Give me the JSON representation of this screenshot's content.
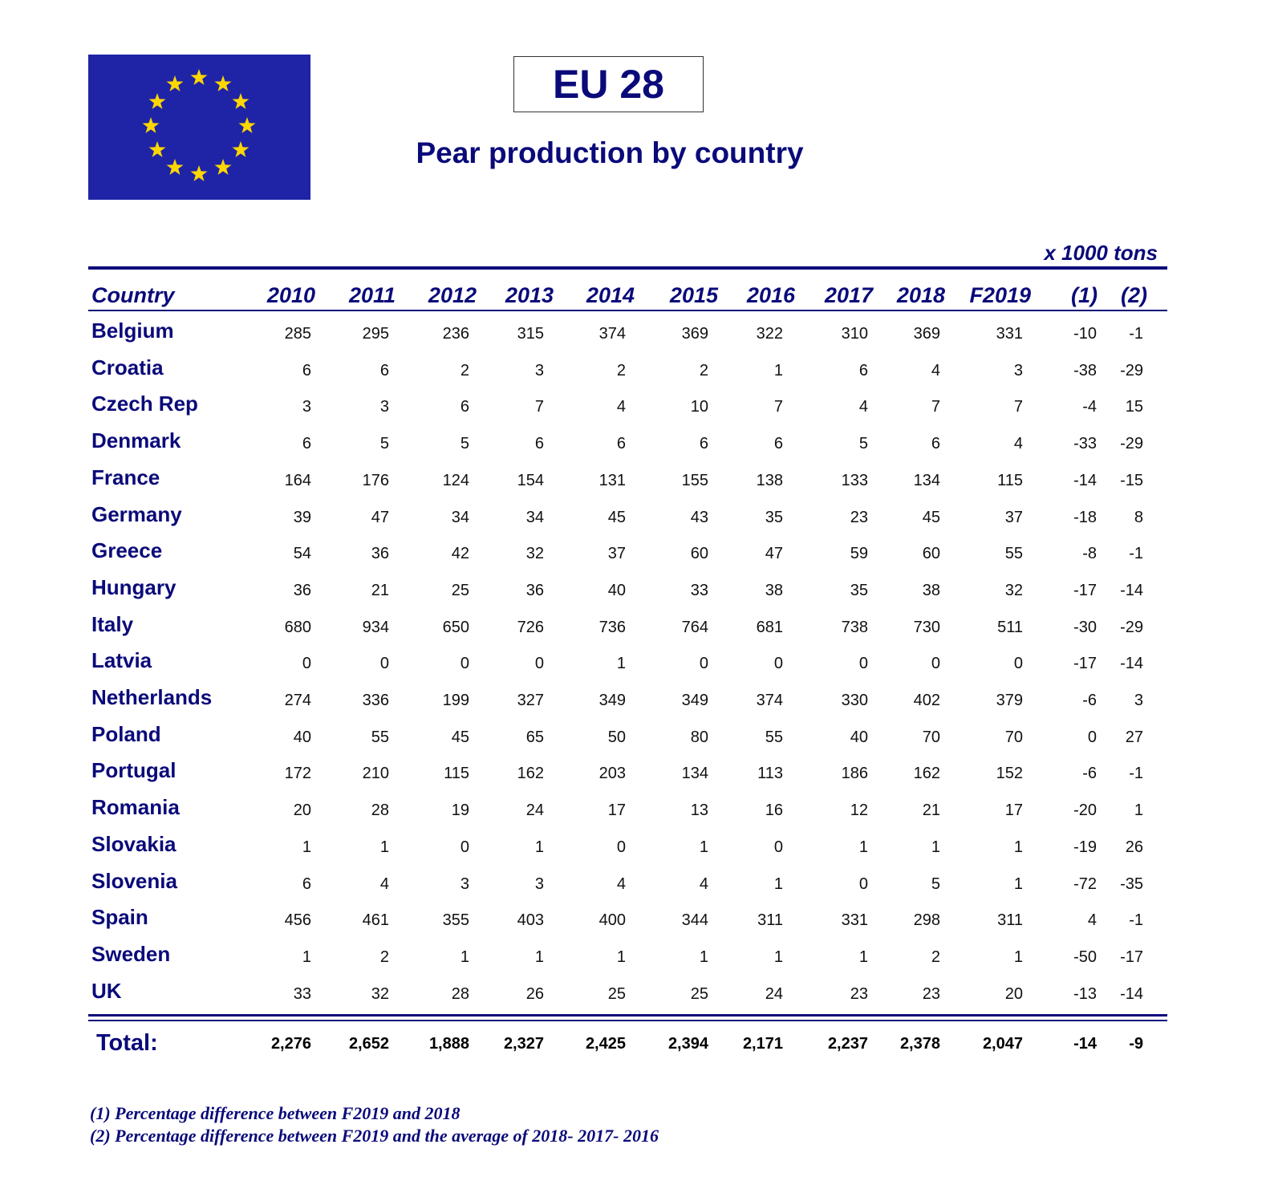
{
  "header": {
    "region": "EU 28",
    "title": "Pear production by country",
    "unit": "x 1000 tons"
  },
  "flag": {
    "icon": "eu-flag-icon",
    "colors": {
      "background": "#1f24a6",
      "stars": "#ffd700"
    }
  },
  "table": {
    "columns": [
      "Country",
      "2010",
      "2011",
      "2012",
      "2013",
      "2014",
      "2015",
      "2016",
      "2017",
      "2018",
      "F2019",
      "(1)",
      "(2)"
    ],
    "rows": [
      {
        "country": "Belgium",
        "values": [
          "285",
          "295",
          "236",
          "315",
          "374",
          "369",
          "322",
          "310",
          "369",
          "331",
          "-10",
          "-1"
        ]
      },
      {
        "country": "Croatia",
        "values": [
          "6",
          "6",
          "2",
          "3",
          "2",
          "2",
          "1",
          "6",
          "4",
          "3",
          "-38",
          "-29"
        ]
      },
      {
        "country": "Czech Rep",
        "values": [
          "3",
          "3",
          "6",
          "7",
          "4",
          "10",
          "7",
          "4",
          "7",
          "7",
          "-4",
          "15"
        ]
      },
      {
        "country": "Denmark",
        "values": [
          "6",
          "5",
          "5",
          "6",
          "6",
          "6",
          "6",
          "5",
          "6",
          "4",
          "-33",
          "-29"
        ]
      },
      {
        "country": "France",
        "values": [
          "164",
          "176",
          "124",
          "154",
          "131",
          "155",
          "138",
          "133",
          "134",
          "115",
          "-14",
          "-15"
        ]
      },
      {
        "country": "Germany",
        "values": [
          "39",
          "47",
          "34",
          "34",
          "45",
          "43",
          "35",
          "23",
          "45",
          "37",
          "-18",
          "8"
        ]
      },
      {
        "country": "Greece",
        "values": [
          "54",
          "36",
          "42",
          "32",
          "37",
          "60",
          "47",
          "59",
          "60",
          "55",
          "-8",
          "-1"
        ]
      },
      {
        "country": "Hungary",
        "values": [
          "36",
          "21",
          "25",
          "36",
          "40",
          "33",
          "38",
          "35",
          "38",
          "32",
          "-17",
          "-14"
        ]
      },
      {
        "country": "Italy",
        "values": [
          "680",
          "934",
          "650",
          "726",
          "736",
          "764",
          "681",
          "738",
          "730",
          "511",
          "-30",
          "-29"
        ]
      },
      {
        "country": "Latvia",
        "values": [
          "0",
          "0",
          "0",
          "0",
          "1",
          "0",
          "0",
          "0",
          "0",
          "0",
          "-17",
          "-14"
        ]
      },
      {
        "country": "Netherlands",
        "values": [
          "274",
          "336",
          "199",
          "327",
          "349",
          "349",
          "374",
          "330",
          "402",
          "379",
          "-6",
          "3"
        ]
      },
      {
        "country": "Poland",
        "values": [
          "40",
          "55",
          "45",
          "65",
          "50",
          "80",
          "55",
          "40",
          "70",
          "70",
          "0",
          "27"
        ]
      },
      {
        "country": "Portugal",
        "values": [
          "172",
          "210",
          "115",
          "162",
          "203",
          "134",
          "113",
          "186",
          "162",
          "152",
          "-6",
          "-1"
        ]
      },
      {
        "country": "Romania",
        "values": [
          "20",
          "28",
          "19",
          "24",
          "17",
          "13",
          "16",
          "12",
          "21",
          "17",
          "-20",
          "1"
        ]
      },
      {
        "country": "Slovakia",
        "values": [
          "1",
          "1",
          "0",
          "1",
          "0",
          "1",
          "0",
          "1",
          "1",
          "1",
          "-19",
          "26"
        ]
      },
      {
        "country": "Slovenia",
        "values": [
          "6",
          "4",
          "3",
          "3",
          "4",
          "4",
          "1",
          "0",
          "5",
          "1",
          "-72",
          "-35"
        ]
      },
      {
        "country": "Spain",
        "values": [
          "456",
          "461",
          "355",
          "403",
          "400",
          "344",
          "311",
          "331",
          "298",
          "311",
          "4",
          "-1"
        ]
      },
      {
        "country": "Sweden",
        "values": [
          "1",
          "2",
          "1",
          "1",
          "1",
          "1",
          "1",
          "1",
          "2",
          "1",
          "-50",
          "-17"
        ]
      },
      {
        "country": "UK",
        "values": [
          "33",
          "32",
          "28",
          "26",
          "25",
          "25",
          "24",
          "23",
          "23",
          "20",
          "-13",
          "-14"
        ]
      }
    ],
    "total": {
      "label": "Total:",
      "values": [
        "2,276",
        "2,652",
        "1,888",
        "2,327",
        "2,425",
        "2,394",
        "2,171",
        "2,237",
        "2,378",
        "2,047",
        "-14",
        "-9"
      ]
    }
  },
  "footnotes": [
    "(1) Percentage difference between F2019 and 2018",
    "(2) Percentage difference between F2019 and the average of 2018- 2017- 2016"
  ]
}
